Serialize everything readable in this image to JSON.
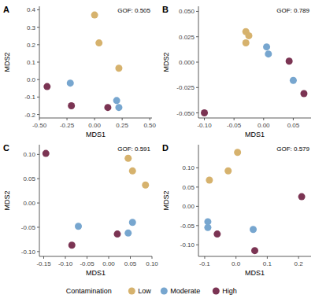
{
  "legend_title": "Contamination",
  "chart_data": [
    {
      "type": "scatter",
      "title": "A",
      "annotation": "GOF: 0.505",
      "x_label": "MDS1",
      "y_label": "MDS2",
      "xlim": [
        -0.5,
        0.52
      ],
      "ylim": [
        -0.22,
        0.42
      ],
      "xticks": [
        {
          "value": -0.5,
          "label": "-0.50"
        },
        {
          "value": -0.25,
          "label": "-0.25"
        },
        {
          "value": 0,
          "label": "0.00"
        },
        {
          "value": 0.25,
          "label": "0.25"
        },
        {
          "value": 0.5,
          "label": "0.50"
        }
      ],
      "yticks": [
        {
          "value": -0.2,
          "label": "-0.2"
        },
        {
          "value": -0.1,
          "label": "-0.1"
        },
        {
          "value": 0,
          "label": "0.0"
        },
        {
          "value": 0.1,
          "label": "0.1"
        },
        {
          "value": 0.2,
          "label": "0.2"
        },
        {
          "value": 0.3,
          "label": "0.3"
        },
        {
          "value": 0.4,
          "label": "0.4"
        }
      ],
      "series": [
        {
          "name": "Low",
          "color": "#d6b26d",
          "x": [
            0.0,
            0.04,
            0.22
          ],
          "values": [
            0.37,
            0.21,
            0.065
          ]
        },
        {
          "name": "Moderate",
          "color": "#77a6cf",
          "x": [
            -0.22,
            0.2,
            0.22
          ],
          "values": [
            -0.02,
            -0.12,
            -0.16
          ]
        },
        {
          "name": "High",
          "color": "#7b3453",
          "x": [
            -0.43,
            -0.21,
            0.12
          ],
          "values": [
            -0.04,
            -0.15,
            -0.16
          ]
        }
      ]
    },
    {
      "type": "scatter",
      "title": "B",
      "annotation": "GOF: 0.789",
      "x_label": "MDS1",
      "y_label": "MDS2",
      "xlim": [
        -0.11,
        0.08
      ],
      "ylim": [
        -0.055,
        0.055
      ],
      "xticks": [
        {
          "value": -0.1,
          "label": "-0.10"
        },
        {
          "value": -0.05,
          "label": "-0.05"
        },
        {
          "value": 0,
          "label": "0.00"
        },
        {
          "value": 0.05,
          "label": "0.05"
        }
      ],
      "yticks": [
        {
          "value": -0.05,
          "label": "-0.050"
        },
        {
          "value": -0.025,
          "label": "-0.025"
        },
        {
          "value": 0,
          "label": "0.000"
        },
        {
          "value": 0.025,
          "label": "0.025"
        },
        {
          "value": 0.05,
          "label": "0.050"
        }
      ],
      "series": [
        {
          "name": "Low",
          "color": "#d6b26d",
          "x": [
            -0.03,
            -0.025,
            -0.03
          ],
          "values": [
            0.03,
            0.026,
            0.019
          ]
        },
        {
          "name": "Moderate",
          "color": "#77a6cf",
          "x": [
            0.005,
            0.008,
            0.05
          ],
          "values": [
            0.015,
            0.008,
            -0.018
          ]
        },
        {
          "name": "High",
          "color": "#7b3453",
          "x": [
            0.043,
            0.068,
            -0.1
          ],
          "values": [
            0.001,
            -0.031,
            -0.05
          ]
        }
      ]
    },
    {
      "type": "scatter",
      "title": "C",
      "annotation": "GOF: 0.591",
      "x_label": "MDS1",
      "y_label": "MDS2",
      "xlim": [
        -0.16,
        0.1
      ],
      "ylim": [
        -0.11,
        0.12
      ],
      "xticks": [
        {
          "value": -0.15,
          "label": "-0.15"
        },
        {
          "value": -0.1,
          "label": "-0.10"
        },
        {
          "value": -0.05,
          "label": "-0.05"
        },
        {
          "value": 0,
          "label": "0.00"
        },
        {
          "value": 0.05,
          "label": "0.05"
        },
        {
          "value": 0.1,
          "label": "0.10"
        }
      ],
      "yticks": [
        {
          "value": -0.1,
          "label": "-0.10"
        },
        {
          "value": -0.05,
          "label": "-0.05"
        },
        {
          "value": 0,
          "label": "0.00"
        },
        {
          "value": 0.05,
          "label": "0.05"
        },
        {
          "value": 0.1,
          "label": "0.10"
        }
      ],
      "series": [
        {
          "name": "Low",
          "color": "#d6b26d",
          "x": [
            0.045,
            0.055,
            0.085
          ],
          "values": [
            0.092,
            0.066,
            0.037
          ]
        },
        {
          "name": "Moderate",
          "color": "#77a6cf",
          "x": [
            -0.07,
            0.055,
            0.045
          ],
          "values": [
            -0.048,
            -0.04,
            -0.062
          ]
        },
        {
          "name": "High",
          "color": "#7b3453",
          "x": [
            -0.145,
            -0.085,
            0.02
          ],
          "values": [
            0.102,
            -0.087,
            -0.064
          ]
        }
      ]
    },
    {
      "type": "scatter",
      "title": "D",
      "annotation": "GOF: 0.579",
      "x_label": "MDS1",
      "y_label": "MDS2",
      "xlim": [
        -0.12,
        0.24
      ],
      "ylim": [
        -0.13,
        0.16
      ],
      "xticks": [
        {
          "value": -0.1,
          "label": "-0.1"
        },
        {
          "value": 0,
          "label": "0.0"
        },
        {
          "value": 0.1,
          "label": "0.1"
        },
        {
          "value": 0.2,
          "label": "0.2"
        }
      ],
      "yticks": [
        {
          "value": -0.1,
          "label": "-0.10"
        },
        {
          "value": -0.05,
          "label": "-0.05"
        },
        {
          "value": 0,
          "label": "0.00"
        },
        {
          "value": 0.05,
          "label": "0.05"
        },
        {
          "value": 0.1,
          "label": "0.10"
        }
      ],
      "series": [
        {
          "name": "Low",
          "color": "#d6b26d",
          "x": [
            0.005,
            -0.025,
            -0.085
          ],
          "values": [
            0.14,
            0.092,
            0.068
          ]
        },
        {
          "name": "Moderate",
          "color": "#77a6cf",
          "x": [
            -0.09,
            -0.09,
            0.055
          ],
          "values": [
            -0.04,
            -0.055,
            -0.06
          ]
        },
        {
          "name": "High",
          "color": "#7b3453",
          "x": [
            -0.06,
            0.06,
            0.21
          ],
          "values": [
            -0.072,
            -0.115,
            0.025
          ]
        }
      ]
    }
  ]
}
